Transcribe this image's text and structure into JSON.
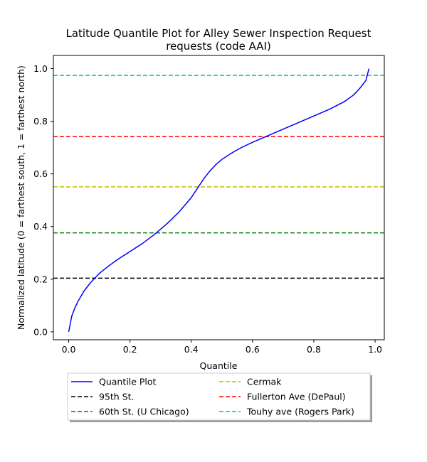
{
  "chart_data": {
    "type": "line",
    "title_line1": "Latitude Quantile Plot for Alley Sewer Inspection Request",
    "title_line2": "requests (code AAI)",
    "xlabel": "Quantile",
    "ylabel": "Normalized latitude (0 = farthest south, 1 = farthest north)",
    "xlim": [
      -0.05,
      1.03
    ],
    "ylim": [
      -0.03,
      1.05
    ],
    "xticks": [
      {
        "value": 0.0,
        "label": "0.0"
      },
      {
        "value": 0.2,
        "label": "0.2"
      },
      {
        "value": 0.4,
        "label": "0.4"
      },
      {
        "value": 0.6,
        "label": "0.6"
      },
      {
        "value": 0.8,
        "label": "0.8"
      },
      {
        "value": 1.0,
        "label": "1.0"
      }
    ],
    "yticks": [
      {
        "value": 0.0,
        "label": "0.0"
      },
      {
        "value": 0.2,
        "label": "0.2"
      },
      {
        "value": 0.4,
        "label": "0.4"
      },
      {
        "value": 0.6,
        "label": "0.6"
      },
      {
        "value": 0.8,
        "label": "0.8"
      },
      {
        "value": 1.0,
        "label": "1.0"
      }
    ],
    "grid": false,
    "legend_placement": "below",
    "series": [
      {
        "name": "Quantile Plot",
        "style": "solid",
        "color": "#0000ff",
        "x": [
          0.0,
          0.005,
          0.01,
          0.02,
          0.03,
          0.05,
          0.07,
          0.1,
          0.13,
          0.16,
          0.2,
          0.24,
          0.28,
          0.32,
          0.36,
          0.4,
          0.42,
          0.44,
          0.46,
          0.48,
          0.5,
          0.53,
          0.56,
          0.6,
          0.65,
          0.7,
          0.75,
          0.8,
          0.85,
          0.9,
          0.93,
          0.95,
          0.97,
          0.98
        ],
        "y": [
          0.0,
          0.03,
          0.06,
          0.09,
          0.115,
          0.155,
          0.185,
          0.222,
          0.25,
          0.275,
          0.305,
          0.335,
          0.37,
          0.41,
          0.455,
          0.51,
          0.545,
          0.58,
          0.61,
          0.635,
          0.655,
          0.678,
          0.698,
          0.72,
          0.745,
          0.77,
          0.795,
          0.82,
          0.845,
          0.875,
          0.9,
          0.925,
          0.955,
          1.0
        ]
      },
      {
        "name": "95th St.",
        "style": "dashed",
        "color": "#000000",
        "hline": 0.204
      },
      {
        "name": "60th St. (U Chicago)",
        "style": "dashed",
        "color": "#008000",
        "hline": 0.376
      },
      {
        "name": "Cermak",
        "style": "dashed",
        "color": "#bfbf00",
        "hline": 0.551
      },
      {
        "name": "Fullerton Ave (DePaul)",
        "style": "dashed",
        "color": "#ff0000",
        "hline": 0.742
      },
      {
        "name": "Touhy ave (Rogers Park)",
        "style": "dashed",
        "color": "#00bfbf",
        "hline": 0.974
      }
    ]
  }
}
